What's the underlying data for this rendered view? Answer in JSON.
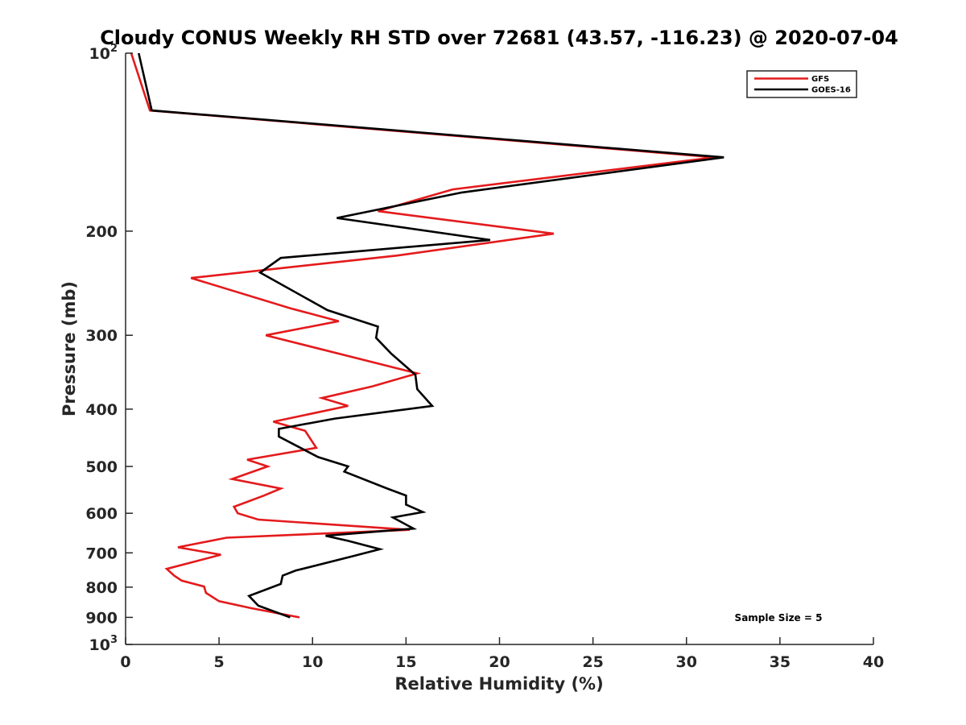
{
  "chart_data": {
    "type": "line",
    "title": "Cloudy CONUS Weekly RH STD over 72681 (43.57, -116.23) @ 2020-07-04",
    "xlabel": "Relative Humidity (%)",
    "ylabel": "Pressure (mb)",
    "xlim": [
      0,
      40
    ],
    "ylim": [
      100,
      1000
    ],
    "y_scale": "log",
    "y_reversed": true,
    "grid": false,
    "legend_position": "top-right",
    "x_ticks": [
      0,
      5,
      10,
      15,
      20,
      25,
      30,
      35,
      40
    ],
    "x_tick_labels": [
      "0",
      "5",
      "10",
      "15",
      "20",
      "25",
      "30",
      "35",
      "40"
    ],
    "y_ticks": [
      {
        "value": 100,
        "base": "10",
        "exp": "2"
      },
      {
        "value": 200,
        "label": "200"
      },
      {
        "value": 300,
        "label": "300"
      },
      {
        "value": 400,
        "label": "400"
      },
      {
        "value": 500,
        "label": "500"
      },
      {
        "value": 600,
        "label": "600"
      },
      {
        "value": 700,
        "label": "700"
      },
      {
        "value": 800,
        "label": "800"
      },
      {
        "value": 900,
        "label": "900"
      },
      {
        "value": 1000,
        "base": "10",
        "exp": "3"
      }
    ],
    "annotation": "Sample Size = 5",
    "series": [
      {
        "name": "GFS",
        "color": "#e41a1c",
        "points": [
          [
            0.3,
            100
          ],
          [
            1.3,
            125
          ],
          [
            31.5,
            150
          ],
          [
            17.5,
            170
          ],
          [
            13.5,
            185
          ],
          [
            22.9,
            202
          ],
          [
            14.5,
            220
          ],
          [
            3.5,
            240
          ],
          [
            8.8,
            270
          ],
          [
            11.4,
            284
          ],
          [
            7.5,
            300
          ],
          [
            15.6,
            348
          ],
          [
            13.2,
            366
          ],
          [
            10.5,
            383
          ],
          [
            11.9,
            395
          ],
          [
            7.9,
            420
          ],
          [
            9.6,
            435
          ],
          [
            10.2,
            465
          ],
          [
            6.5,
            487
          ],
          [
            7.6,
            500
          ],
          [
            5.7,
            525
          ],
          [
            8.3,
            545
          ],
          [
            7.4,
            560
          ],
          [
            5.8,
            585
          ],
          [
            6.0,
            600
          ],
          [
            7.1,
            615
          ],
          [
            15.2,
            640
          ],
          [
            5.4,
            660
          ],
          [
            2.8,
            685
          ],
          [
            5.1,
            705
          ],
          [
            2.2,
            745
          ],
          [
            2.6,
            765
          ],
          [
            3.0,
            780
          ],
          [
            4.2,
            798
          ],
          [
            4.3,
            818
          ],
          [
            5.0,
            845
          ],
          [
            6.7,
            868
          ],
          [
            9.3,
            900
          ]
        ]
      },
      {
        "name": "GOES-16",
        "color": "#000000",
        "points": [
          [
            0.7,
            100
          ],
          [
            1.4,
            125
          ],
          [
            32.0,
            150
          ],
          [
            18.0,
            172
          ],
          [
            11.3,
            190
          ],
          [
            19.5,
            207
          ],
          [
            8.3,
            222
          ],
          [
            7.2,
            235
          ],
          [
            10.8,
            272
          ],
          [
            13.5,
            290
          ],
          [
            13.4,
            303
          ],
          [
            14.2,
            322
          ],
          [
            15.5,
            350
          ],
          [
            15.6,
            370
          ],
          [
            16.4,
            395
          ],
          [
            11.2,
            415
          ],
          [
            8.2,
            432
          ],
          [
            8.2,
            445
          ],
          [
            10.3,
            482
          ],
          [
            11.9,
            500
          ],
          [
            11.7,
            510
          ],
          [
            14.0,
            545
          ],
          [
            15.0,
            560
          ],
          [
            15.0,
            580
          ],
          [
            15.9,
            597
          ],
          [
            14.3,
            610
          ],
          [
            15.4,
            637
          ],
          [
            10.7,
            655
          ],
          [
            11.9,
            668
          ],
          [
            13.6,
            690
          ],
          [
            12.1,
            710
          ],
          [
            9.1,
            750
          ],
          [
            8.4,
            765
          ],
          [
            8.3,
            790
          ],
          [
            6.6,
            828
          ],
          [
            7.1,
            860
          ],
          [
            8.8,
            900
          ]
        ]
      }
    ]
  }
}
